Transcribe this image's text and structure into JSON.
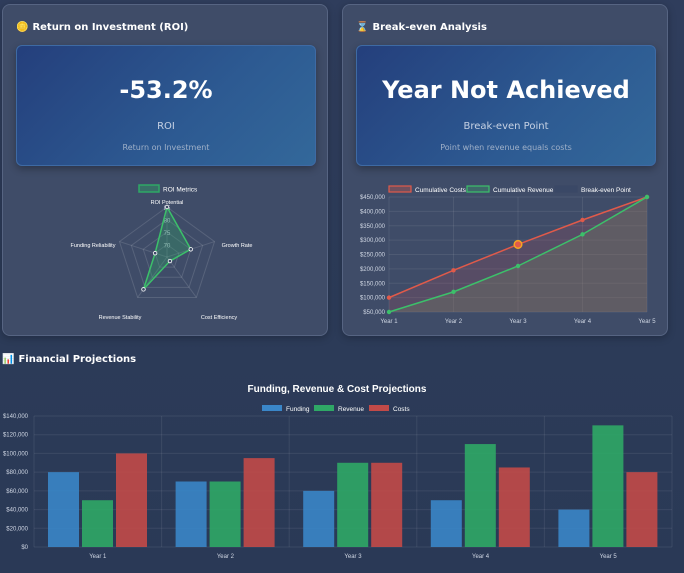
{
  "roi_card": {
    "title": "Return on Investment (ROI)",
    "icon": "coins-icon",
    "value": "-53.2%",
    "label": "ROI",
    "sublabel": "Return on Investment"
  },
  "breakeven_card": {
    "title": "Break-even Analysis",
    "icon": "hourglass-icon",
    "value": "Year Not Achieved",
    "label": "Break-even Point",
    "sublabel": "Point when revenue equals costs"
  },
  "projections_section": {
    "title": "Financial Projections",
    "icon": "bar-chart-icon"
  },
  "colors": {
    "funding": "#3a86c8",
    "revenue": "#2fa866",
    "costs": "#c24a48",
    "cum_costs": "#e05a4a",
    "cum_revenue": "#3cc06a",
    "breakeven": "#f5a623"
  },
  "chart_data": [
    {
      "type": "radar",
      "legend": [
        "ROI Metrics"
      ],
      "legend_position": "top",
      "axes": [
        "ROI Potential",
        "Growth Rate",
        "Cost Efficiency",
        "Revenue Stability",
        "Funding Reliability"
      ],
      "values": [
        85,
        75,
        67,
        81,
        70
      ],
      "ticks": [
        "70",
        "75",
        "80",
        "85"
      ],
      "rlim": [
        65,
        85
      ]
    },
    {
      "type": "line",
      "categories": [
        "Year 1",
        "Year 2",
        "Year 3",
        "Year 4",
        "Year 5"
      ],
      "series": [
        {
          "name": "Cumulative Costs",
          "values": [
            100000,
            195000,
            285000,
            370000,
            450000
          ]
        },
        {
          "name": "Cumulative Revenue",
          "values": [
            50000,
            120000,
            210000,
            320000,
            450000
          ]
        },
        {
          "name": "Break-even Point",
          "values": [
            null,
            null,
            285000,
            null,
            null
          ]
        }
      ],
      "yticks": [
        "$50,000",
        "$100,000",
        "$150,000",
        "$200,000",
        "$250,000",
        "$300,000",
        "$350,000",
        "$400,000",
        "$450,000"
      ],
      "ylim": [
        50000,
        450000
      ],
      "grid": true,
      "legend_position": "top"
    },
    {
      "type": "bar",
      "title": "Funding, Revenue & Cost Projections",
      "categories": [
        "Year 1",
        "Year 2",
        "Year 3",
        "Year 4",
        "Year 5"
      ],
      "series": [
        {
          "name": "Funding",
          "values": [
            80000,
            70000,
            60000,
            50000,
            40000
          ]
        },
        {
          "name": "Revenue",
          "values": [
            50000,
            70000,
            90000,
            110000,
            130000
          ]
        },
        {
          "name": "Costs",
          "values": [
            100000,
            95000,
            90000,
            85000,
            80000
          ]
        }
      ],
      "yticks": [
        "$0",
        "$20,000",
        "$40,000",
        "$60,000",
        "$80,000",
        "$100,000",
        "$120,000",
        "$140,000"
      ],
      "ylim": [
        0,
        140000
      ],
      "grid": true,
      "legend_position": "top"
    }
  ]
}
